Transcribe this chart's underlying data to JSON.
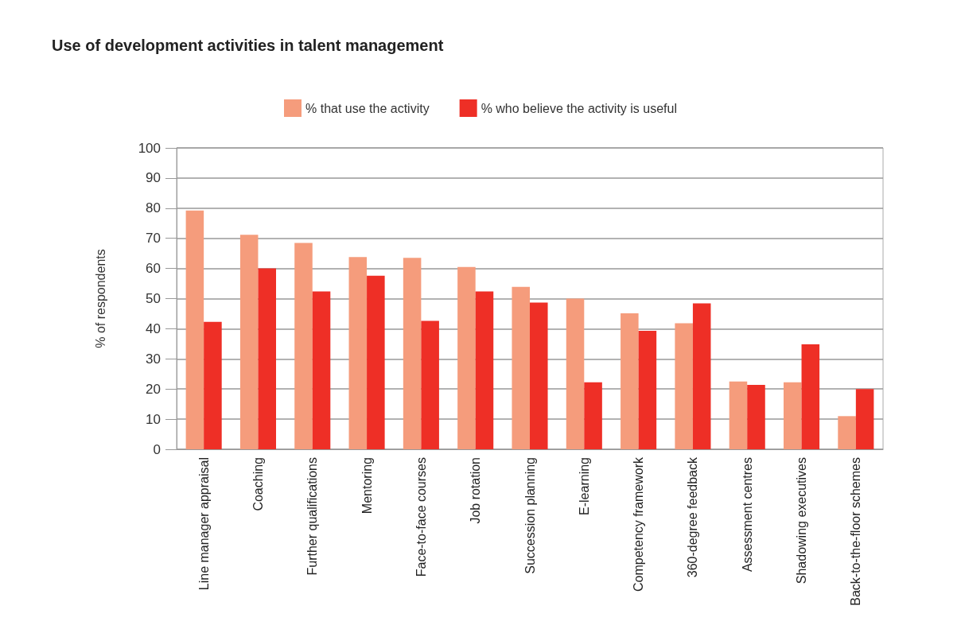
{
  "chart_data": {
    "type": "bar",
    "title": "Use of development activities in talent management",
    "ylabel": "% of respondents",
    "categories": [
      "Line manager appraisal",
      "Coaching",
      "Further qualifications",
      "Mentoring",
      "Face-to-face courses",
      "Job rotation",
      "Succession planning",
      "E-learning",
      "Competency framework",
      "360-degree feedback",
      "Assessment centres",
      "Shadowing executives",
      "Back-to-the-floor schemes"
    ],
    "series": [
      {
        "name": "% that use the activity",
        "color": "#f59c7c",
        "values": [
          79.2,
          71.2,
          68.5,
          63.8,
          63.5,
          60.5,
          53.9,
          50,
          45.1,
          41.8,
          22.5,
          22.2,
          11
        ]
      },
      {
        "name": "% who believe the activity is useful",
        "color": "#ee2f26",
        "values": [
          42.3,
          60,
          52.4,
          57.6,
          42.6,
          52.4,
          48.7,
          22.2,
          39.3,
          48.4,
          21.4,
          34.8,
          20
        ]
      }
    ],
    "ylim": [
      0,
      100
    ],
    "yticks": [
      0,
      10,
      20,
      30,
      40,
      50,
      60,
      70,
      80,
      90,
      100
    ],
    "grid": "y",
    "legend": "top"
  }
}
